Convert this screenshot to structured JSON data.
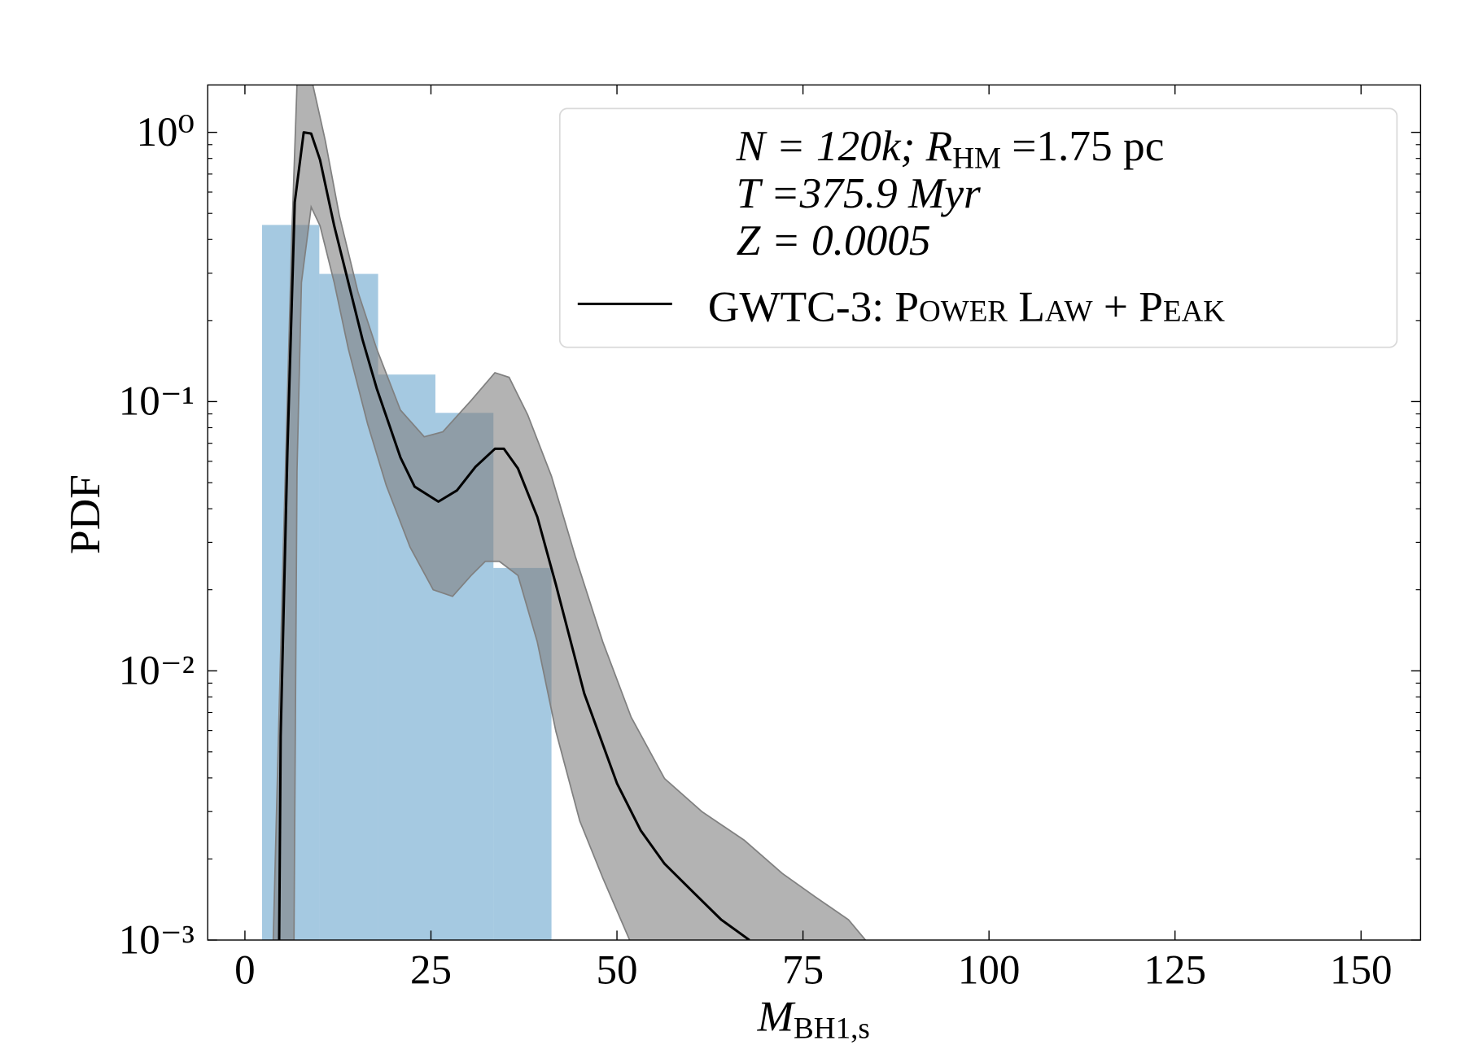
{
  "chart_data": {
    "type": "histogram",
    "xlabel": [
      "M",
      "BH1,s"
    ],
    "ylabel": "PDF",
    "bins": [
      2.3,
      10.0,
      17.9,
      25.6,
      33.4,
      41.2
    ],
    "values": [
      0.453,
      0.298,
      0.126,
      0.0908,
      0.0241
    ],
    "color": "#1f77b4",
    "alpha": 0.4,
    "xlim": [
      -5,
      158
    ],
    "xticks": [
      0,
      25,
      50,
      75,
      100,
      125,
      150
    ],
    "ylim": [
      0.001,
      1.5
    ],
    "ylog": true,
    "yticks": [
      {
        "value": 1,
        "label": "10⁰"
      },
      {
        "value": 0.1,
        "label": "10⁻¹"
      },
      {
        "value": 0.01,
        "label": "10⁻²"
      },
      {
        "value": 0.001,
        "label": "10⁻³"
      }
    ],
    "yminorticks": [
      0.002,
      0.003,
      0.004,
      0.005,
      0.006,
      0.007,
      0.008,
      0.009,
      0.02,
      0.03,
      0.04,
      0.05,
      0.06,
      0.07,
      0.08,
      0.09,
      0.2,
      0.3,
      0.4,
      0.5,
      0.6,
      0.7,
      0.8,
      0.9
    ],
    "annotation": [
      [
        "N = 120k; R",
        "HM",
        " =1.75 pc"
      ],
      [
        "T =375.9 Myr"
      ],
      [
        "Z = 0.0005"
      ]
    ],
    "line": {
      "name": "GWTC-3: Power Law + Peak",
      "color": "#000000",
      "x": [
        4.6,
        4.8,
        5.7,
        6.7,
        7.9,
        8.9,
        10.1,
        12.0,
        13.9,
        15.8,
        17.7,
        20.9,
        22.8,
        26.0,
        28.5,
        31.0,
        33.6,
        34.8,
        36.7,
        39.3,
        41.8,
        45.6,
        50.0,
        53.2,
        56.4,
        60.2,
        64.0,
        67.8
      ],
      "values": [
        0.001,
        0.00573,
        0.0647,
        0.55,
        1.0,
        0.99,
        0.79,
        0.45,
        0.277,
        0.17,
        0.112,
        0.062,
        0.0483,
        0.0425,
        0.0468,
        0.0573,
        0.0668,
        0.0668,
        0.0564,
        0.0373,
        0.0209,
        0.00824,
        0.00382,
        0.00255,
        0.00192,
        0.00151,
        0.00119,
        0.001
      ]
    },
    "band": {
      "color": "#808080",
      "alpha": 0.6,
      "upper": {
        "x": [
          3.8,
          5.1,
          6.3,
          7.0,
          8.9,
          10.8,
          12.7,
          15.2,
          17.7,
          20.9,
          24.1,
          26.6,
          30.4,
          33.6,
          35.5,
          38.0,
          41.2,
          44.4,
          48.1,
          51.9,
          56.4,
          61.4,
          67.1,
          72.2,
          76.6,
          81.1,
          83.4
        ],
        "values": [
          0.001,
          0.0245,
          0.415,
          1.51,
          1.6,
          0.93,
          0.49,
          0.255,
          0.157,
          0.093,
          0.074,
          0.0772,
          0.101,
          0.128,
          0.123,
          0.0893,
          0.0528,
          0.0266,
          0.0128,
          0.00673,
          0.00398,
          0.003,
          0.00235,
          0.00177,
          0.00145,
          0.00119,
          0.001
        ]
      },
      "lower": {
        "x": [
          6.6,
          7.0,
          7.6,
          8.9,
          10.1,
          12.0,
          13.9,
          16.5,
          19.0,
          22.2,
          25.3,
          27.9,
          30.4,
          32.3,
          34.2,
          36.7,
          39.3,
          41.8,
          45.0,
          48.1,
          51.7
        ],
        "values": [
          0.001,
          0.055,
          0.277,
          0.528,
          0.45,
          0.277,
          0.157,
          0.0824,
          0.0488,
          0.0288,
          0.02,
          0.0189,
          0.0226,
          0.0255,
          0.0255,
          0.0226,
          0.0128,
          0.00596,
          0.00277,
          0.0017,
          0.001
        ]
      }
    }
  }
}
